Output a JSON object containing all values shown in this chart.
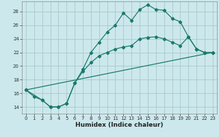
{
  "xlabel": "Humidex (Indice chaleur)",
  "background_color": "#cce8ec",
  "grid_color": "#aacccc",
  "line_color": "#1a7a6e",
  "xlim": [
    -0.5,
    23.5
  ],
  "ylim": [
    13.0,
    29.5
  ],
  "yticks": [
    14,
    16,
    18,
    20,
    22,
    24,
    26,
    28
  ],
  "xticks": [
    0,
    1,
    2,
    3,
    4,
    5,
    6,
    7,
    8,
    9,
    10,
    11,
    12,
    13,
    14,
    15,
    16,
    17,
    18,
    19,
    20,
    21,
    22,
    23
  ],
  "line1_x": [
    0,
    1,
    2,
    3,
    4,
    5,
    6,
    7,
    8,
    9,
    10,
    11,
    12,
    13,
    14,
    15,
    16,
    17,
    18,
    19,
    20,
    21,
    22,
    23
  ],
  "line1_y": [
    16.5,
    15.5,
    15.0,
    14.0,
    14.0,
    14.5,
    17.5,
    19.5,
    22.0,
    23.5,
    25.0,
    26.0,
    27.8,
    26.7,
    28.3,
    29.0,
    28.3,
    28.2,
    27.0,
    26.5,
    24.3,
    22.5,
    22.0,
    22.0
  ],
  "line2_x": [
    0,
    2,
    3,
    4,
    5,
    6,
    7,
    8,
    9,
    10,
    11,
    12,
    13,
    14,
    15,
    16,
    17,
    18,
    19,
    20,
    21,
    22,
    23
  ],
  "line2_y": [
    16.5,
    15.0,
    14.0,
    14.0,
    14.5,
    17.5,
    19.2,
    20.5,
    21.5,
    22.0,
    22.5,
    22.8,
    23.0,
    24.0,
    24.2,
    24.3,
    24.0,
    23.5,
    23.0,
    24.3,
    22.5,
    22.0,
    22.0
  ],
  "line3_x": [
    0,
    23
  ],
  "line3_y": [
    16.5,
    22.0
  ]
}
